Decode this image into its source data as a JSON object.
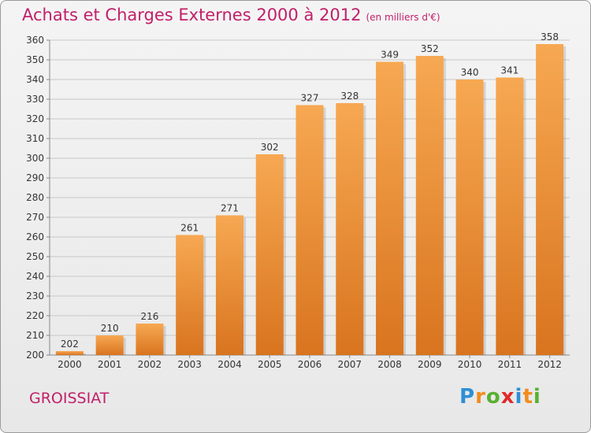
{
  "chart_data": {
    "type": "bar",
    "title": "Achats et Charges Externes 2000 à 2012",
    "subtitle": "(en milliers d'€)",
    "categories": [
      "2000",
      "2001",
      "2002",
      "2003",
      "2004",
      "2005",
      "2006",
      "2007",
      "2008",
      "2009",
      "2010",
      "2011",
      "2012"
    ],
    "values": [
      202,
      210,
      216,
      261,
      271,
      302,
      327,
      328,
      349,
      352,
      340,
      341,
      358
    ],
    "ylim": [
      200,
      360
    ],
    "yticks": [
      200,
      210,
      220,
      230,
      240,
      250,
      260,
      270,
      280,
      290,
      300,
      310,
      320,
      330,
      340,
      350,
      360
    ],
    "grid": true,
    "bar_color_top": "#f7a852",
    "bar_color_bottom": "#d9741f"
  },
  "commune": "GROISSIAT",
  "logo": {
    "letters": [
      "P",
      "r",
      "o",
      "x",
      "i",
      "t",
      "i"
    ],
    "colors": [
      "#2e8fd6",
      "#f28c1c",
      "#58b030",
      "#e02a2a",
      "#2e8fd6",
      "#f28c1c",
      "#58b030"
    ]
  }
}
